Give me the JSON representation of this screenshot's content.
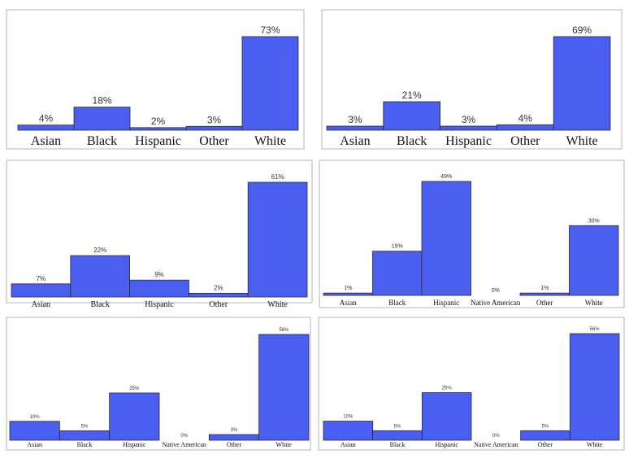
{
  "chart_data": [
    {
      "type": "bar",
      "categories": [
        "Asian",
        "Black",
        "Hispanic",
        "Other",
        "White"
      ],
      "values": [
        4,
        18,
        2,
        3,
        73
      ],
      "value_labels": [
        "4%",
        "18%",
        "2%",
        "3%",
        "73%"
      ],
      "color": "#4a5ff0"
    },
    {
      "type": "bar",
      "categories": [
        "Asian",
        "Black",
        "Hispanic",
        "Other",
        "White"
      ],
      "values": [
        3,
        21,
        3,
        4,
        69
      ],
      "value_labels": [
        "3%",
        "21%",
        "3%",
        "4%",
        "69%"
      ],
      "color": "#4a5ff0"
    },
    {
      "type": "bar",
      "categories": [
        "Asian",
        "Black",
        "Hispanic",
        "Other",
        "White"
      ],
      "values": [
        7,
        22,
        9,
        2,
        61
      ],
      "value_labels": [
        "7%",
        "22%",
        "9%",
        "2%",
        "61%"
      ],
      "color": "#4a5ff0"
    },
    {
      "type": "bar",
      "categories": [
        "Asian",
        "Black",
        "Hispanic",
        "Native American",
        "Other",
        "White"
      ],
      "values": [
        1,
        19,
        49,
        0,
        1,
        30
      ],
      "value_labels": [
        "1%",
        "19%",
        "49%",
        "0%",
        "1%",
        "30%"
      ],
      "color": "#4a5ff0"
    },
    {
      "type": "bar",
      "categories": [
        "Asian",
        "Black",
        "Hispanic",
        "Native American",
        "Other",
        "White"
      ],
      "values": [
        10,
        5,
        25,
        0,
        3,
        56
      ],
      "value_labels": [
        "10%",
        "5%",
        "25%",
        "0%",
        "3%",
        "56%"
      ],
      "color": "#4a5ff0"
    },
    {
      "type": "bar",
      "categories": [
        "Asian",
        "Black",
        "Hispanic",
        "Native American",
        "Other",
        "White"
      ],
      "values": [
        10,
        5,
        25,
        0,
        5,
        56
      ],
      "value_labels": [
        "10%",
        "5%",
        "25%",
        "0%",
        "5%",
        "56%"
      ],
      "color": "#4a5ff0"
    }
  ]
}
